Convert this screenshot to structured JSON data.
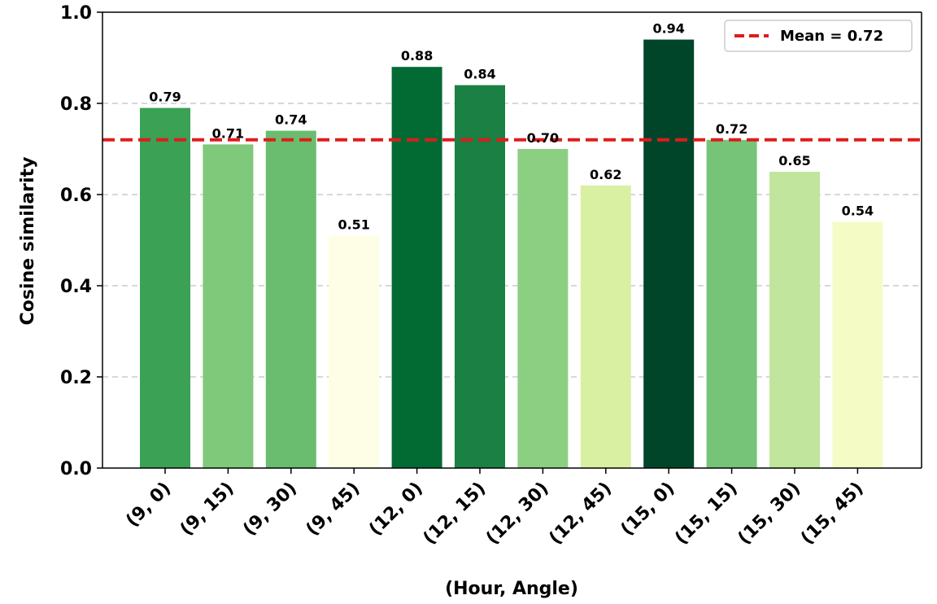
{
  "chart_data": {
    "type": "bar",
    "categories": [
      "(9, 0)",
      "(9, 15)",
      "(9, 30)",
      "(9, 45)",
      "(12, 0)",
      "(12, 15)",
      "(12, 30)",
      "(12, 45)",
      "(15, 0)",
      "(15, 15)",
      "(15, 30)",
      "(15, 45)"
    ],
    "values": [
      0.79,
      0.71,
      0.74,
      0.51,
      0.88,
      0.84,
      0.7,
      0.62,
      0.94,
      0.72,
      0.65,
      0.54
    ],
    "value_labels": [
      "0.79",
      "0.71",
      "0.74",
      "0.51",
      "0.88",
      "0.84",
      "0.70",
      "0.62",
      "0.94",
      "0.72",
      "0.65",
      "0.54"
    ],
    "bar_colors": [
      "#3aa155",
      "#7ec97a",
      "#6abd6f",
      "#fdfee5",
      "#026b34",
      "#1a8043",
      "#8ccf83",
      "#d9f0a3",
      "#00452a",
      "#76c478",
      "#c1e59c",
      "#f5fbc4"
    ],
    "xlabel": "(Hour, Angle)",
    "ylabel": "Cosine similarity",
    "ylim": [
      0,
      1.0
    ],
    "yticks": [
      0.0,
      0.2,
      0.4,
      0.6,
      0.8,
      1.0
    ],
    "ytick_labels": [
      "0.0",
      "0.2",
      "0.4",
      "0.6",
      "0.8",
      "1.0"
    ],
    "mean_line": {
      "value": 0.72,
      "label": "Mean = 0.72",
      "color": "#e01b1b",
      "style": "dashed"
    },
    "legend_position": "top-right",
    "grid": {
      "y": true,
      "x": false,
      "style": "dashed",
      "color": "#cccccc"
    }
  }
}
